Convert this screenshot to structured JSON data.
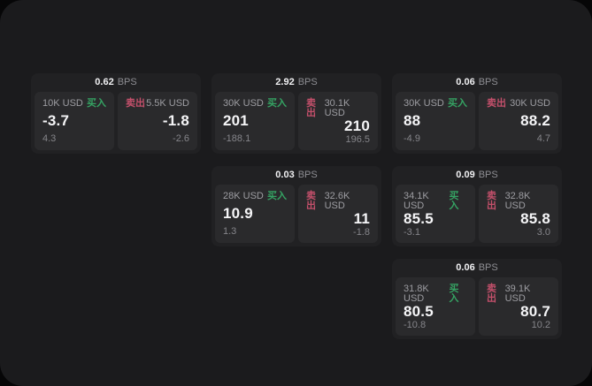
{
  "labels": {
    "bps_unit": "BPS",
    "buy": "买入",
    "sell": "卖出"
  },
  "colors": {
    "buy": "#35a363",
    "sell": "#c4506b",
    "window_background": "#1b1b1d",
    "card_background": "#212123",
    "panel_background": "#2a2a2c"
  },
  "cards": [
    {
      "col": 1,
      "row": 1,
      "bps": "0.62",
      "buy": {
        "amount": "10K USD",
        "price": "-3.7",
        "sub": "4.3"
      },
      "sell": {
        "amount": "5.5K USD",
        "price": "-1.8",
        "sub": "-2.6"
      }
    },
    {
      "col": 2,
      "row": 1,
      "bps": "2.92",
      "buy": {
        "amount": "30K USD",
        "price": "201",
        "sub": "-188.1"
      },
      "sell": {
        "amount": "30.1K USD",
        "price": "210",
        "sub": "196.5"
      }
    },
    {
      "col": 3,
      "row": 1,
      "bps": "0.06",
      "buy": {
        "amount": "30K USD",
        "price": "88",
        "sub": "-4.9"
      },
      "sell": {
        "amount": "30K USD",
        "price": "88.2",
        "sub": "4.7"
      }
    },
    {
      "col": 2,
      "row": 2,
      "bps": "0.03",
      "buy": {
        "amount": "28K USD",
        "price": "10.9",
        "sub": "1.3"
      },
      "sell": {
        "amount": "32.6K USD",
        "price": "11",
        "sub": "-1.8"
      }
    },
    {
      "col": 3,
      "row": 2,
      "bps": "0.09",
      "buy": {
        "amount": "34.1K USD",
        "price": "85.5",
        "sub": "-3.1"
      },
      "sell": {
        "amount": "32.8K USD",
        "price": "85.8",
        "sub": "3.0"
      }
    },
    {
      "col": 3,
      "row": 3,
      "bps": "0.06",
      "buy": {
        "amount": "31.8K USD",
        "price": "80.5",
        "sub": "-10.8"
      },
      "sell": {
        "amount": "39.1K USD",
        "price": "80.7",
        "sub": "10.2"
      }
    }
  ]
}
